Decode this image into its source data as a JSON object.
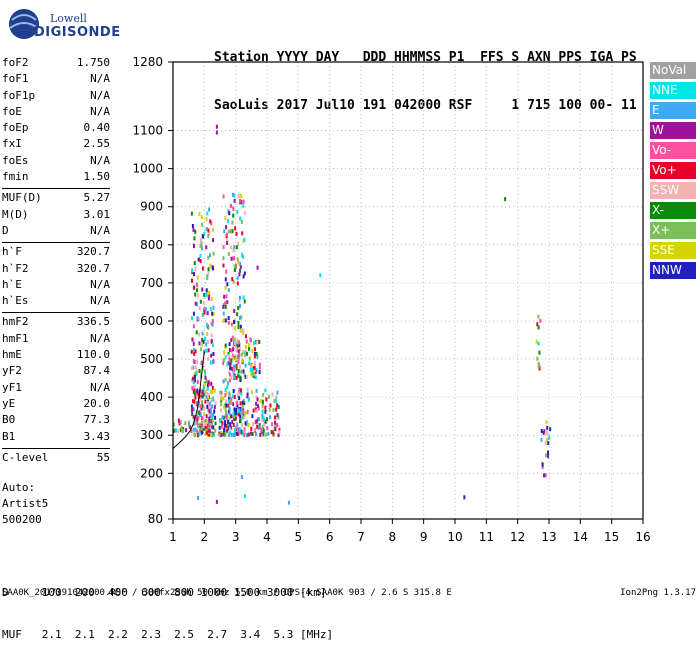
{
  "logo": {
    "line1": "Lowell",
    "line2": "DIGISONDE"
  },
  "header": {
    "line1": "Station YYYY DAY   DDD HHMMSS P1  FFS S AXN PPS IGA PS",
    "line2": "SaoLuis 2017 Jul10 191 042000 RSF     1 715 100 00- 11"
  },
  "params": [
    {
      "label": "foF2",
      "value": "1.750"
    },
    {
      "label": "foF1",
      "value": "N/A"
    },
    {
      "label": "foF1p",
      "value": "N/A"
    },
    {
      "label": "foE",
      "value": "N/A"
    },
    {
      "label": "foEp",
      "value": "0.40"
    },
    {
      "label": "fxI",
      "value": "2.55"
    },
    {
      "label": "foEs",
      "value": "N/A"
    },
    {
      "label": "fmin",
      "value": "1.50"
    },
    {
      "label": "MUF(D)",
      "value": "5.27"
    },
    {
      "label": "M(D)",
      "value": "3.01"
    },
    {
      "label": "D",
      "value": "N/A"
    },
    {
      "label": "h`F",
      "value": "320.7"
    },
    {
      "label": "h`F2",
      "value": "320.7"
    },
    {
      "label": "h`E",
      "value": "N/A"
    },
    {
      "label": "h`Es",
      "value": "N/A"
    },
    {
      "label": "hmF2",
      "value": "336.5"
    },
    {
      "label": "hmF1",
      "value": "N/A"
    },
    {
      "label": "hmE",
      "value": "110.0"
    },
    {
      "label": "yF2",
      "value": "87.4"
    },
    {
      "label": "yF1",
      "value": "N/A"
    },
    {
      "label": "yE",
      "value": "20.0"
    },
    {
      "label": "B0",
      "value": "77.3"
    },
    {
      "label": "B1",
      "value": "3.43"
    },
    {
      "label": "C-level",
      "value": "55"
    }
  ],
  "auto": {
    "line1": "Auto:",
    "line2": "Artist5",
    "line3": "500200"
  },
  "bottom_table": {
    "row1": "D     100  200  400  600  800 1000 1500 3000 [km]",
    "row2": "MUF   2.1  2.1  2.2  2.3  2.5  2.7  3.4  5.3 [MHz]"
  },
  "footer": {
    "left": "SAA0K_2017191042000.RSF / 300fx256h 50 kHz 5.0 km / DPS-4 SAA0K 903 / 2.6 S 315.8 E",
    "right": "Ion2Png 1.3.17"
  },
  "legend": [
    {
      "label": "NoVal",
      "color": "#a0a0a0"
    },
    {
      "label": "NNE",
      "color": "#00e5e5"
    },
    {
      "label": "E",
      "color": "#3fa9f5"
    },
    {
      "label": "W",
      "color": "#a0109a"
    },
    {
      "label": "Vo-",
      "color": "#ff50a0"
    },
    {
      "label": "Vo+",
      "color": "#e8002a"
    },
    {
      "label": "SSW",
      "color": "#f4b2b0"
    },
    {
      "label": "X-",
      "color": "#0a8a0a"
    },
    {
      "label": "X+",
      "color": "#7bbf5a"
    },
    {
      "label": "SSE",
      "color": "#d4d400"
    },
    {
      "label": "NNW",
      "color": "#2020c0"
    }
  ],
  "chart_data": {
    "type": "scatter",
    "xlim": [
      1,
      16
    ],
    "ylim": [
      80,
      1280
    ],
    "x_ticks": [
      "1",
      "2",
      "3",
      "4",
      "5",
      "6",
      "7",
      "8",
      "9",
      "10",
      "11",
      "12",
      "13",
      "14",
      "15",
      "16"
    ],
    "y_ticks": [
      "1280",
      "1100",
      "1000",
      "900",
      "800",
      "700",
      "600",
      "500",
      "400",
      "300",
      "200",
      "80"
    ],
    "y_tick_values": [
      1280,
      1100,
      1000,
      900,
      800,
      700,
      600,
      500,
      400,
      300,
      200,
      80
    ],
    "grid": true,
    "clusters": [
      {
        "x": [
          1.6,
          2.3
        ],
        "y": [
          300,
          900
        ],
        "n": 260
      },
      {
        "x": [
          2.6,
          3.3
        ],
        "y": [
          300,
          940
        ],
        "n": 220
      },
      {
        "x": [
          1.8,
          4.4
        ],
        "y": [
          300,
          420
        ],
        "n": 260
      },
      {
        "x": [
          2.8,
          3.8
        ],
        "y": [
          450,
          560
        ],
        "n": 90
      },
      {
        "x": [
          1.0,
          1.6
        ],
        "y": [
          310,
          340
        ],
        "n": 20
      },
      {
        "x": [
          12.6,
          12.75
        ],
        "y": [
          460,
          620
        ],
        "n": 14
      },
      {
        "x": [
          12.75,
          13.05
        ],
        "y": [
          190,
          340
        ],
        "n": 22
      }
    ],
    "isolated_points": [
      {
        "x": 2.4,
        "y": 1110,
        "c": 3
      },
      {
        "x": 2.4,
        "y": 1095,
        "c": 3
      },
      {
        "x": 3.7,
        "y": 740,
        "c": 3
      },
      {
        "x": 5.7,
        "y": 720,
        "c": 1
      },
      {
        "x": 11.6,
        "y": 920,
        "c": 7
      },
      {
        "x": 3.2,
        "y": 190,
        "c": 2
      },
      {
        "x": 1.8,
        "y": 135,
        "c": 2
      },
      {
        "x": 2.4,
        "y": 125,
        "c": 3
      },
      {
        "x": 4.7,
        "y": 123,
        "c": 2
      },
      {
        "x": 10.3,
        "y": 137,
        "c": 10
      },
      {
        "x": 3.3,
        "y": 140,
        "c": 1
      }
    ],
    "trace": {
      "x": [
        1.0,
        1.2,
        1.4,
        1.55,
        1.65,
        1.72,
        1.78,
        1.82,
        1.86,
        1.9,
        1.95,
        2.0
      ],
      "y": [
        265,
        280,
        296,
        312,
        330,
        350,
        370,
        395,
        420,
        450,
        485,
        520
      ]
    }
  }
}
